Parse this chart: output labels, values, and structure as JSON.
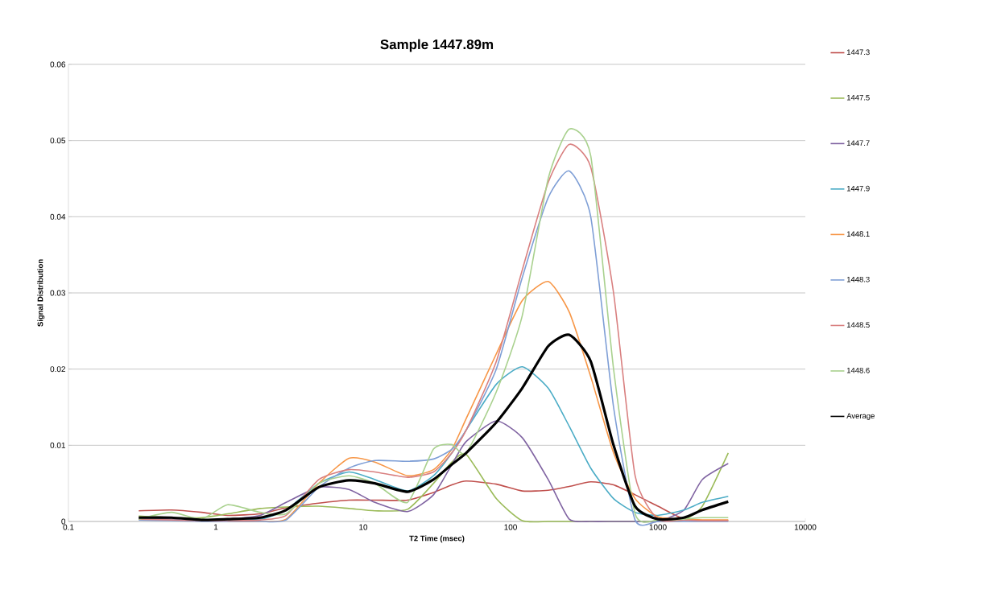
{
  "chart_data": {
    "type": "line",
    "title": "Sample 1447.89m",
    "xlabel": "T2 Time (msec)",
    "ylabel": "Signal Distribution",
    "x": [
      0.3,
      0.5,
      0.8,
      1.2,
      2,
      3,
      5,
      8,
      12,
      20,
      30,
      40,
      50,
      80,
      120,
      180,
      250,
      350,
      500,
      700,
      1000,
      1500,
      2000,
      3000
    ],
    "series": [
      {
        "name": "1447.3",
        "color": "#c0504d",
        "values": [
          0.0014,
          0.0015,
          0.0012,
          0.0008,
          0.001,
          0.0018,
          0.0024,
          0.0028,
          0.0028,
          0.0028,
          0.0038,
          0.0048,
          0.0053,
          0.0049,
          0.004,
          0.0041,
          0.0046,
          0.0052,
          0.0048,
          0.0035,
          0.002,
          0.0003,
          0.0001,
          0.0001
        ]
      },
      {
        "name": "1447.5",
        "color": "#9bbb59",
        "values": [
          0.0007,
          0.0005,
          0.0005,
          0.001,
          0.0017,
          0.0019,
          0.002,
          0.0017,
          0.0014,
          0.0016,
          0.005,
          0.0078,
          0.0088,
          0.003,
          0.0001,
          0,
          0,
          0,
          0,
          0,
          0,
          0.0002,
          0.002,
          0.009
        ]
      },
      {
        "name": "1447.7",
        "color": "#8064a2",
        "values": [
          0.0005,
          0.0003,
          0.0002,
          0.0003,
          0.0008,
          0.0025,
          0.0045,
          0.0042,
          0.0025,
          0.0013,
          0.0035,
          0.0075,
          0.0105,
          0.0132,
          0.011,
          0.0055,
          0.0003,
          0,
          0,
          0,
          0,
          0.0015,
          0.0055,
          0.0076
        ]
      },
      {
        "name": "1447.9",
        "color": "#4bacc6",
        "values": [
          0.0003,
          0.0002,
          0.0001,
          0.0002,
          0.0003,
          0.0015,
          0.005,
          0.0065,
          0.0055,
          0.004,
          0.006,
          0.009,
          0.012,
          0.018,
          0.0203,
          0.0175,
          0.0125,
          0.007,
          0.003,
          0.0012,
          0.0008,
          0.0015,
          0.0025,
          0.0033
        ]
      },
      {
        "name": "1448.1",
        "color": "#f79646",
        "values": [
          null,
          null,
          null,
          0,
          0,
          0.0003,
          0.005,
          0.0083,
          0.0078,
          0.006,
          0.0068,
          0.0095,
          0.0135,
          0.022,
          0.029,
          0.0315,
          0.0275,
          0.019,
          0.009,
          0.003,
          0.0006,
          0.0003,
          0.0002,
          0.0002
        ]
      },
      {
        "name": "1448.3",
        "color": "#7f9fd6",
        "values": [
          0.0002,
          0.0001,
          0,
          0,
          0,
          0.0002,
          0.0045,
          0.007,
          0.008,
          0.0079,
          0.0082,
          0.0095,
          0.012,
          0.02,
          0.032,
          0.0425,
          0.046,
          0.04,
          0.015,
          0.0002,
          0,
          0,
          0,
          0
        ]
      },
      {
        "name": "1448.5",
        "color": "#d98080",
        "values": [
          0.0003,
          0.0002,
          0.0001,
          0.0001,
          0.0002,
          0.0008,
          0.0055,
          0.0068,
          0.0065,
          0.0058,
          0.0065,
          0.009,
          0.012,
          0.021,
          0.033,
          0.0445,
          0.0495,
          0.0465,
          0.03,
          0.006,
          0.0003,
          0.0002,
          0.0001,
          0.0001
        ]
      },
      {
        "name": "1448.6",
        "color": "#a9d18e",
        "values": [
          0.0003,
          0.0012,
          0.0003,
          0.0022,
          0.0012,
          0.001,
          0.005,
          0.006,
          0.005,
          0.0025,
          0.0095,
          0.0101,
          0.009,
          0.017,
          0.027,
          0.045,
          0.0515,
          0.048,
          0.02,
          0.001,
          0.0002,
          0.0003,
          0.0005,
          0.0005
        ]
      },
      {
        "name": "Average",
        "color": "#000000",
        "values": [
          0.0005,
          0.0005,
          0.0002,
          0.0003,
          0.0005,
          0.0015,
          0.0045,
          0.0054,
          0.005,
          0.0039,
          0.0055,
          0.0075,
          0.009,
          0.013,
          0.0175,
          0.023,
          0.0245,
          0.021,
          0.01,
          0.002,
          0.0003,
          0.0005,
          0.0015,
          0.0026
        ]
      }
    ],
    "log": "x",
    "xlim": [
      0.1,
      10000
    ],
    "xticks": [
      0.1,
      1,
      10,
      100,
      1000,
      10000
    ],
    "ylim": [
      0,
      0.06
    ],
    "yticks": [
      0,
      0.01,
      0.02,
      0.03,
      0.04,
      0.05,
      0.06
    ],
    "grid": "y",
    "legend": "right",
    "marker": "none",
    "line_style": "solid"
  }
}
